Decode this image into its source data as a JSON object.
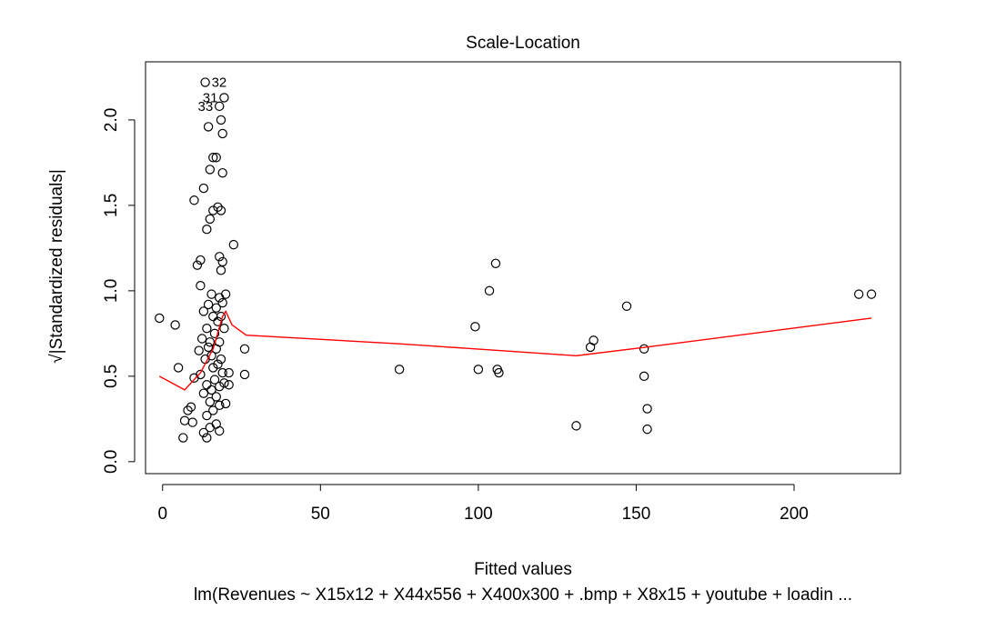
{
  "chart_data": {
    "type": "scatter",
    "title": "Scale-Location",
    "xlabel": "Fitted values",
    "ylabel": "√|Standardized residuals|",
    "subtitle": "lm(Revenues ~ X15x12 + X44x556 + X400x300 + .bmp + X8x15 + youtube + loadin ...",
    "xlim": [
      -5.4,
      233.7
    ],
    "ylim": [
      -0.07,
      2.34
    ],
    "x_ticks": [
      0,
      50,
      100,
      150,
      200
    ],
    "y_ticks": [
      0.0,
      0.5,
      1.0,
      1.5,
      2.0
    ],
    "x_tick_labels": [
      "0",
      "50",
      "100",
      "150",
      "200"
    ],
    "y_tick_labels": [
      "0.0",
      "0.5",
      "1.0",
      "1.5",
      "2.0"
    ],
    "grid": false,
    "point_color": "#000000",
    "smooth_color": "#ff0000",
    "points": [
      {
        "x": -1.0,
        "y": 0.84
      },
      {
        "x": 4.0,
        "y": 0.8
      },
      {
        "x": 5.0,
        "y": 0.55
      },
      {
        "x": 6.5,
        "y": 0.14
      },
      {
        "x": 7.0,
        "y": 0.24
      },
      {
        "x": 8.0,
        "y": 0.3
      },
      {
        "x": 9.0,
        "y": 0.32
      },
      {
        "x": 9.5,
        "y": 0.23
      },
      {
        "x": 10.0,
        "y": 1.53
      },
      {
        "x": 10.0,
        "y": 0.49
      },
      {
        "x": 11.0,
        "y": 1.15
      },
      {
        "x": 11.5,
        "y": 0.65
      },
      {
        "x": 12.0,
        "y": 1.18
      },
      {
        "x": 12.0,
        "y": 1.03
      },
      {
        "x": 12.0,
        "y": 0.51
      },
      {
        "x": 12.5,
        "y": 0.72
      },
      {
        "x": 13.0,
        "y": 1.6
      },
      {
        "x": 13.0,
        "y": 0.88
      },
      {
        "x": 13.0,
        "y": 0.4
      },
      {
        "x": 13.0,
        "y": 0.17
      },
      {
        "x": 13.5,
        "y": 2.22
      },
      {
        "x": 13.5,
        "y": 0.6
      },
      {
        "x": 14.0,
        "y": 1.36
      },
      {
        "x": 14.0,
        "y": 0.78
      },
      {
        "x": 14.0,
        "y": 0.45
      },
      {
        "x": 14.0,
        "y": 0.27
      },
      {
        "x": 14.0,
        "y": 0.14
      },
      {
        "x": 14.5,
        "y": 1.96
      },
      {
        "x": 14.5,
        "y": 0.92
      },
      {
        "x": 14.5,
        "y": 0.67
      },
      {
        "x": 15.0,
        "y": 1.71
      },
      {
        "x": 15.0,
        "y": 1.42
      },
      {
        "x": 15.0,
        "y": 0.7
      },
      {
        "x": 15.0,
        "y": 0.35
      },
      {
        "x": 15.0,
        "y": 0.2
      },
      {
        "x": 15.5,
        "y": 0.98
      },
      {
        "x": 15.5,
        "y": 0.62
      },
      {
        "x": 15.5,
        "y": 0.42
      },
      {
        "x": 16.0,
        "y": 1.78
      },
      {
        "x": 16.0,
        "y": 1.47
      },
      {
        "x": 16.0,
        "y": 0.85
      },
      {
        "x": 16.0,
        "y": 0.55
      },
      {
        "x": 16.0,
        "y": 0.3
      },
      {
        "x": 16.5,
        "y": 0.75
      },
      {
        "x": 16.5,
        "y": 0.48
      },
      {
        "x": 17.0,
        "y": 1.78
      },
      {
        "x": 17.0,
        "y": 0.9
      },
      {
        "x": 17.0,
        "y": 0.66
      },
      {
        "x": 17.0,
        "y": 0.38
      },
      {
        "x": 17.0,
        "y": 0.22
      },
      {
        "x": 17.5,
        "y": 1.49
      },
      {
        "x": 17.5,
        "y": 0.82
      },
      {
        "x": 17.5,
        "y": 0.57
      },
      {
        "x": 18.0,
        "y": 2.08
      },
      {
        "x": 18.0,
        "y": 1.2
      },
      {
        "x": 18.0,
        "y": 0.96
      },
      {
        "x": 18.0,
        "y": 0.7
      },
      {
        "x": 18.0,
        "y": 0.44
      },
      {
        "x": 18.0,
        "y": 0.33
      },
      {
        "x": 18.0,
        "y": 0.18
      },
      {
        "x": 18.5,
        "y": 2.0
      },
      {
        "x": 18.5,
        "y": 1.47
      },
      {
        "x": 18.5,
        "y": 1.12
      },
      {
        "x": 18.5,
        "y": 0.85
      },
      {
        "x": 18.5,
        "y": 0.6
      },
      {
        "x": 19.0,
        "y": 1.92
      },
      {
        "x": 19.0,
        "y": 1.69
      },
      {
        "x": 19.0,
        "y": 1.17
      },
      {
        "x": 19.0,
        "y": 0.93
      },
      {
        "x": 19.0,
        "y": 0.52
      },
      {
        "x": 19.5,
        "y": 2.13
      },
      {
        "x": 19.5,
        "y": 0.78
      },
      {
        "x": 19.5,
        "y": 0.46
      },
      {
        "x": 20.0,
        "y": 0.98
      },
      {
        "x": 20.0,
        "y": 0.34
      },
      {
        "x": 21.0,
        "y": 0.45
      },
      {
        "x": 21.0,
        "y": 0.52
      },
      {
        "x": 22.5,
        "y": 1.27
      },
      {
        "x": 26.0,
        "y": 0.66
      },
      {
        "x": 26.0,
        "y": 0.51
      },
      {
        "x": 75.0,
        "y": 0.54
      },
      {
        "x": 99.0,
        "y": 0.79
      },
      {
        "x": 100.0,
        "y": 0.54
      },
      {
        "x": 103.5,
        "y": 1.0
      },
      {
        "x": 105.5,
        "y": 1.16
      },
      {
        "x": 106.0,
        "y": 0.54
      },
      {
        "x": 106.5,
        "y": 0.52
      },
      {
        "x": 131.0,
        "y": 0.21
      },
      {
        "x": 135.5,
        "y": 0.67
      },
      {
        "x": 136.5,
        "y": 0.71
      },
      {
        "x": 147.0,
        "y": 0.91
      },
      {
        "x": 152.5,
        "y": 0.66
      },
      {
        "x": 152.5,
        "y": 0.5
      },
      {
        "x": 153.5,
        "y": 0.31
      },
      {
        "x": 153.5,
        "y": 0.19
      },
      {
        "x": 220.5,
        "y": 0.98
      },
      {
        "x": 224.5,
        "y": 0.98
      }
    ],
    "smoother": [
      {
        "x": -1.0,
        "y": 0.5
      },
      {
        "x": 7.0,
        "y": 0.42
      },
      {
        "x": 12.0,
        "y": 0.52
      },
      {
        "x": 16.0,
        "y": 0.66
      },
      {
        "x": 19.0,
        "y": 0.85
      },
      {
        "x": 20.0,
        "y": 0.88
      },
      {
        "x": 22.0,
        "y": 0.8
      },
      {
        "x": 26.5,
        "y": 0.74
      },
      {
        "x": 75.0,
        "y": 0.69
      },
      {
        "x": 131.0,
        "y": 0.62
      },
      {
        "x": 153.0,
        "y": 0.67
      },
      {
        "x": 224.5,
        "y": 0.84
      }
    ],
    "labeled_points": [
      {
        "label": "32",
        "x": 13.5,
        "y": 2.22
      },
      {
        "label": "31",
        "x": 19.5,
        "y": 2.13
      },
      {
        "label": "33",
        "x": 18.0,
        "y": 2.08
      }
    ]
  }
}
